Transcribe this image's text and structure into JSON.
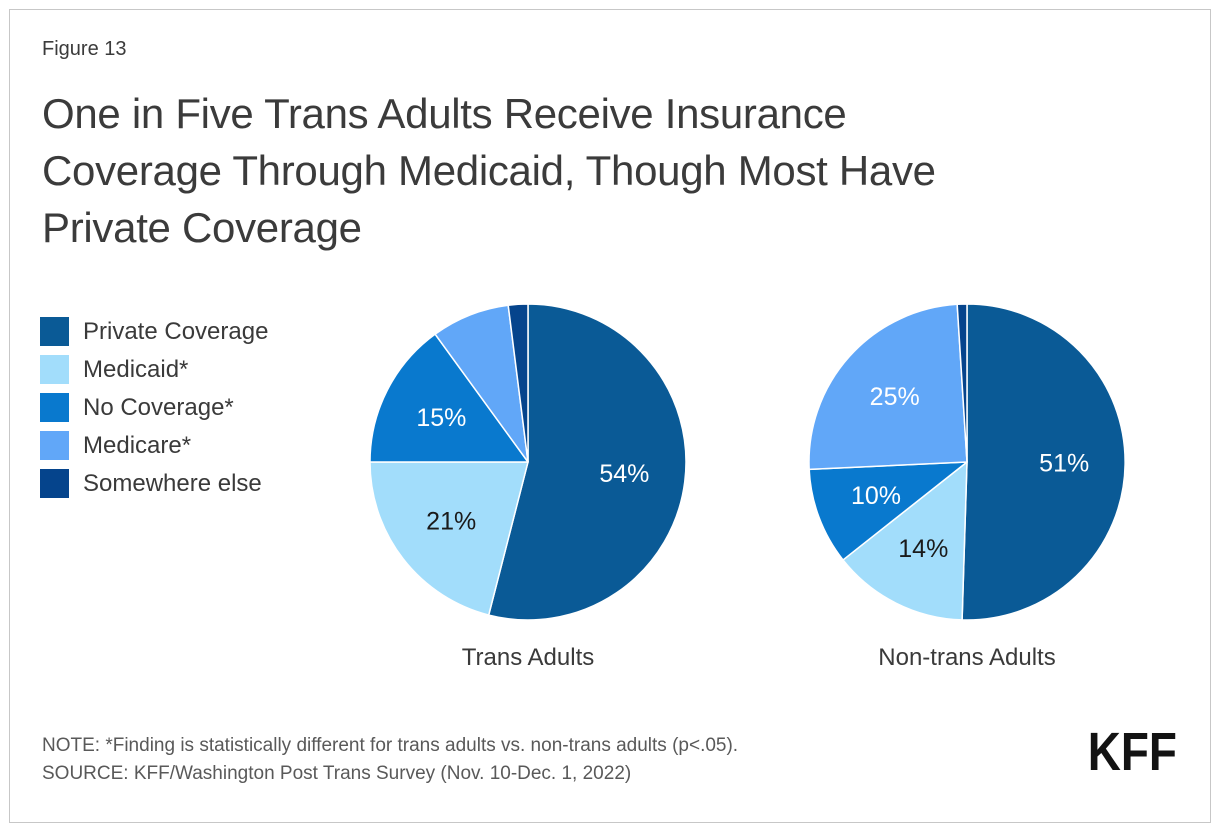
{
  "frame": {
    "border_color": "#c7c7c7"
  },
  "header": {
    "figure_label": "Figure 13",
    "title_lines": [
      "One in Five Trans Adults Receive Insurance",
      "Coverage Through Medicaid, Though Most Have",
      "Private Coverage"
    ]
  },
  "colors": {
    "private_coverage": "#0A5A96",
    "medicaid": "#A2DDFB",
    "no_coverage": "#0979CE",
    "medicare": "#61A7F8",
    "somewhere_else": "#05448C",
    "text_dark": "#3b3b3b",
    "text_gray": "#595959"
  },
  "legend": {
    "items": [
      {
        "label": "Private Coverage",
        "color": "#0A5A96"
      },
      {
        "label": "Medicaid*",
        "color": "#A2DDFB"
      },
      {
        "label": "No Coverage*",
        "color": "#0979CE"
      },
      {
        "label": "Medicare*",
        "color": "#61A7F8"
      },
      {
        "label": "Somewhere else",
        "color": "#05448C"
      }
    ]
  },
  "chart_data": [
    {
      "type": "pie",
      "title": "Trans Adults",
      "units": "percent",
      "start_angle_deg": 0,
      "direction": "clockwise",
      "slices": [
        {
          "name": "Private Coverage",
          "value": 54,
          "label": "54%",
          "color": "#0A5A96",
          "label_color": "#ffffff"
        },
        {
          "name": "Medicaid*",
          "value": 21,
          "label": "21%",
          "color": "#A2DDFB",
          "label_color": "#1a1a1a"
        },
        {
          "name": "No Coverage*",
          "value": 15,
          "label": "15%",
          "color": "#0979CE",
          "label_color": "#ffffff"
        },
        {
          "name": "Medicare*",
          "value": 8,
          "label": "",
          "color": "#61A7F8",
          "label_color": "#ffffff"
        },
        {
          "name": "Somewhere else",
          "value": 2,
          "label": "",
          "color": "#05448C",
          "label_color": "#ffffff"
        }
      ]
    },
    {
      "type": "pie",
      "title": "Non-trans Adults",
      "units": "percent",
      "start_angle_deg": 0,
      "direction": "clockwise",
      "slices": [
        {
          "name": "Private Coverage",
          "value": 51,
          "label": "51%",
          "color": "#0A5A96",
          "label_color": "#ffffff"
        },
        {
          "name": "Medicaid*",
          "value": 14,
          "label": "14%",
          "color": "#A2DDFB",
          "label_color": "#1a1a1a"
        },
        {
          "name": "No Coverage*",
          "value": 10,
          "label": "10%",
          "color": "#0979CE",
          "label_color": "#ffffff"
        },
        {
          "name": "Medicare*",
          "value": 25,
          "label": "25%",
          "color": "#61A7F8",
          "label_color": "#ffffff"
        },
        {
          "name": "Somewhere else",
          "value": 1,
          "label": "",
          "color": "#05448C",
          "label_color": "#ffffff"
        }
      ]
    }
  ],
  "footer": {
    "note": "NOTE: *Finding is statistically different for trans adults vs. non-trans adults (p<.05).",
    "source": "SOURCE: KFF/Washington Post Trans Survey (Nov. 10-Dec. 1, 2022)",
    "logo": "KFF"
  }
}
